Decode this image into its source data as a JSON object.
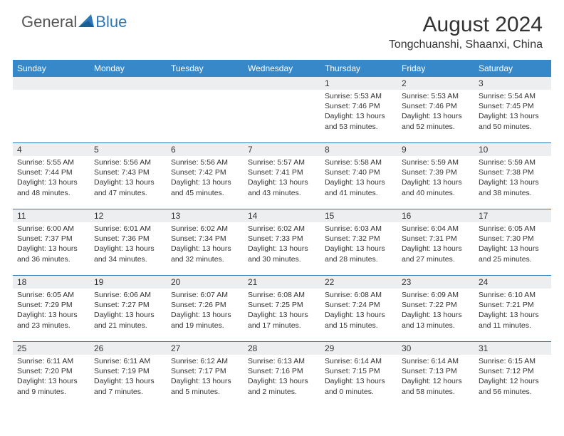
{
  "brand": {
    "text1": "General",
    "text2": "Blue"
  },
  "title": "August 2024",
  "location": "Tongchuanshi, Shaanxi, China",
  "colors": {
    "header_bg": "#3788c8",
    "row_divider": "#2b77b8",
    "daynum_bg": "#eceeef",
    "text": "#333333",
    "white": "#ffffff"
  },
  "weekdays": [
    "Sunday",
    "Monday",
    "Tuesday",
    "Wednesday",
    "Thursday",
    "Friday",
    "Saturday"
  ],
  "weeks": [
    [
      {
        "n": "",
        "sr": "",
        "ss": "",
        "dl": ""
      },
      {
        "n": "",
        "sr": "",
        "ss": "",
        "dl": ""
      },
      {
        "n": "",
        "sr": "",
        "ss": "",
        "dl": ""
      },
      {
        "n": "",
        "sr": "",
        "ss": "",
        "dl": ""
      },
      {
        "n": "1",
        "sr": "5:53 AM",
        "ss": "7:46 PM",
        "dl": "13 hours and 53 minutes."
      },
      {
        "n": "2",
        "sr": "5:53 AM",
        "ss": "7:46 PM",
        "dl": "13 hours and 52 minutes."
      },
      {
        "n": "3",
        "sr": "5:54 AM",
        "ss": "7:45 PM",
        "dl": "13 hours and 50 minutes."
      }
    ],
    [
      {
        "n": "4",
        "sr": "5:55 AM",
        "ss": "7:44 PM",
        "dl": "13 hours and 48 minutes."
      },
      {
        "n": "5",
        "sr": "5:56 AM",
        "ss": "7:43 PM",
        "dl": "13 hours and 47 minutes."
      },
      {
        "n": "6",
        "sr": "5:56 AM",
        "ss": "7:42 PM",
        "dl": "13 hours and 45 minutes."
      },
      {
        "n": "7",
        "sr": "5:57 AM",
        "ss": "7:41 PM",
        "dl": "13 hours and 43 minutes."
      },
      {
        "n": "8",
        "sr": "5:58 AM",
        "ss": "7:40 PM",
        "dl": "13 hours and 41 minutes."
      },
      {
        "n": "9",
        "sr": "5:59 AM",
        "ss": "7:39 PM",
        "dl": "13 hours and 40 minutes."
      },
      {
        "n": "10",
        "sr": "5:59 AM",
        "ss": "7:38 PM",
        "dl": "13 hours and 38 minutes."
      }
    ],
    [
      {
        "n": "11",
        "sr": "6:00 AM",
        "ss": "7:37 PM",
        "dl": "13 hours and 36 minutes."
      },
      {
        "n": "12",
        "sr": "6:01 AM",
        "ss": "7:36 PM",
        "dl": "13 hours and 34 minutes."
      },
      {
        "n": "13",
        "sr": "6:02 AM",
        "ss": "7:34 PM",
        "dl": "13 hours and 32 minutes."
      },
      {
        "n": "14",
        "sr": "6:02 AM",
        "ss": "7:33 PM",
        "dl": "13 hours and 30 minutes."
      },
      {
        "n": "15",
        "sr": "6:03 AM",
        "ss": "7:32 PM",
        "dl": "13 hours and 28 minutes."
      },
      {
        "n": "16",
        "sr": "6:04 AM",
        "ss": "7:31 PM",
        "dl": "13 hours and 27 minutes."
      },
      {
        "n": "17",
        "sr": "6:05 AM",
        "ss": "7:30 PM",
        "dl": "13 hours and 25 minutes."
      }
    ],
    [
      {
        "n": "18",
        "sr": "6:05 AM",
        "ss": "7:29 PM",
        "dl": "13 hours and 23 minutes."
      },
      {
        "n": "19",
        "sr": "6:06 AM",
        "ss": "7:27 PM",
        "dl": "13 hours and 21 minutes."
      },
      {
        "n": "20",
        "sr": "6:07 AM",
        "ss": "7:26 PM",
        "dl": "13 hours and 19 minutes."
      },
      {
        "n": "21",
        "sr": "6:08 AM",
        "ss": "7:25 PM",
        "dl": "13 hours and 17 minutes."
      },
      {
        "n": "22",
        "sr": "6:08 AM",
        "ss": "7:24 PM",
        "dl": "13 hours and 15 minutes."
      },
      {
        "n": "23",
        "sr": "6:09 AM",
        "ss": "7:22 PM",
        "dl": "13 hours and 13 minutes."
      },
      {
        "n": "24",
        "sr": "6:10 AM",
        "ss": "7:21 PM",
        "dl": "13 hours and 11 minutes."
      }
    ],
    [
      {
        "n": "25",
        "sr": "6:11 AM",
        "ss": "7:20 PM",
        "dl": "13 hours and 9 minutes."
      },
      {
        "n": "26",
        "sr": "6:11 AM",
        "ss": "7:19 PM",
        "dl": "13 hours and 7 minutes."
      },
      {
        "n": "27",
        "sr": "6:12 AM",
        "ss": "7:17 PM",
        "dl": "13 hours and 5 minutes."
      },
      {
        "n": "28",
        "sr": "6:13 AM",
        "ss": "7:16 PM",
        "dl": "13 hours and 2 minutes."
      },
      {
        "n": "29",
        "sr": "6:14 AM",
        "ss": "7:15 PM",
        "dl": "13 hours and 0 minutes."
      },
      {
        "n": "30",
        "sr": "6:14 AM",
        "ss": "7:13 PM",
        "dl": "12 hours and 58 minutes."
      },
      {
        "n": "31",
        "sr": "6:15 AM",
        "ss": "7:12 PM",
        "dl": "12 hours and 56 minutes."
      }
    ]
  ],
  "labels": {
    "sunrise": "Sunrise:",
    "sunset": "Sunset:",
    "daylight": "Daylight:"
  }
}
